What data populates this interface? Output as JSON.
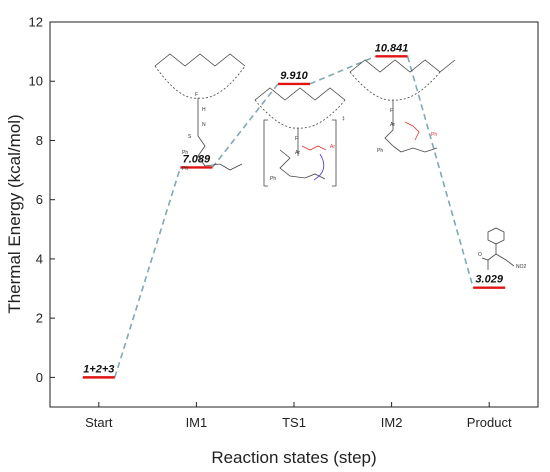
{
  "chart_data": {
    "type": "line",
    "xlabel": "Reaction states (step)",
    "ylabel": "Thermal Energy (kcal/mol)",
    "categories": [
      "Start",
      "IM1",
      "TS1",
      "IM2",
      "Product"
    ],
    "ylim": [
      -1,
      12
    ],
    "yticks": [
      0,
      2,
      4,
      6,
      8,
      10,
      12
    ],
    "points": [
      {
        "state": "Start",
        "value": 0,
        "label": "1+2+3"
      },
      {
        "state": "IM1",
        "value": 7.089,
        "label": "7.089"
      },
      {
        "state": "TS1",
        "value": 9.91,
        "label": "9.910"
      },
      {
        "state": "IM2",
        "value": 10.841,
        "label": "10.841"
      },
      {
        "state": "Product",
        "value": 3.029,
        "label": "3.029"
      }
    ],
    "level_color": "#e11414",
    "connector_color": "#7fa8b6",
    "connector_style": "dashed",
    "annotations": [
      "Ph",
      "Ar",
      "NO2",
      "H",
      "F",
      "N",
      "S",
      "O",
      "‡"
    ]
  }
}
